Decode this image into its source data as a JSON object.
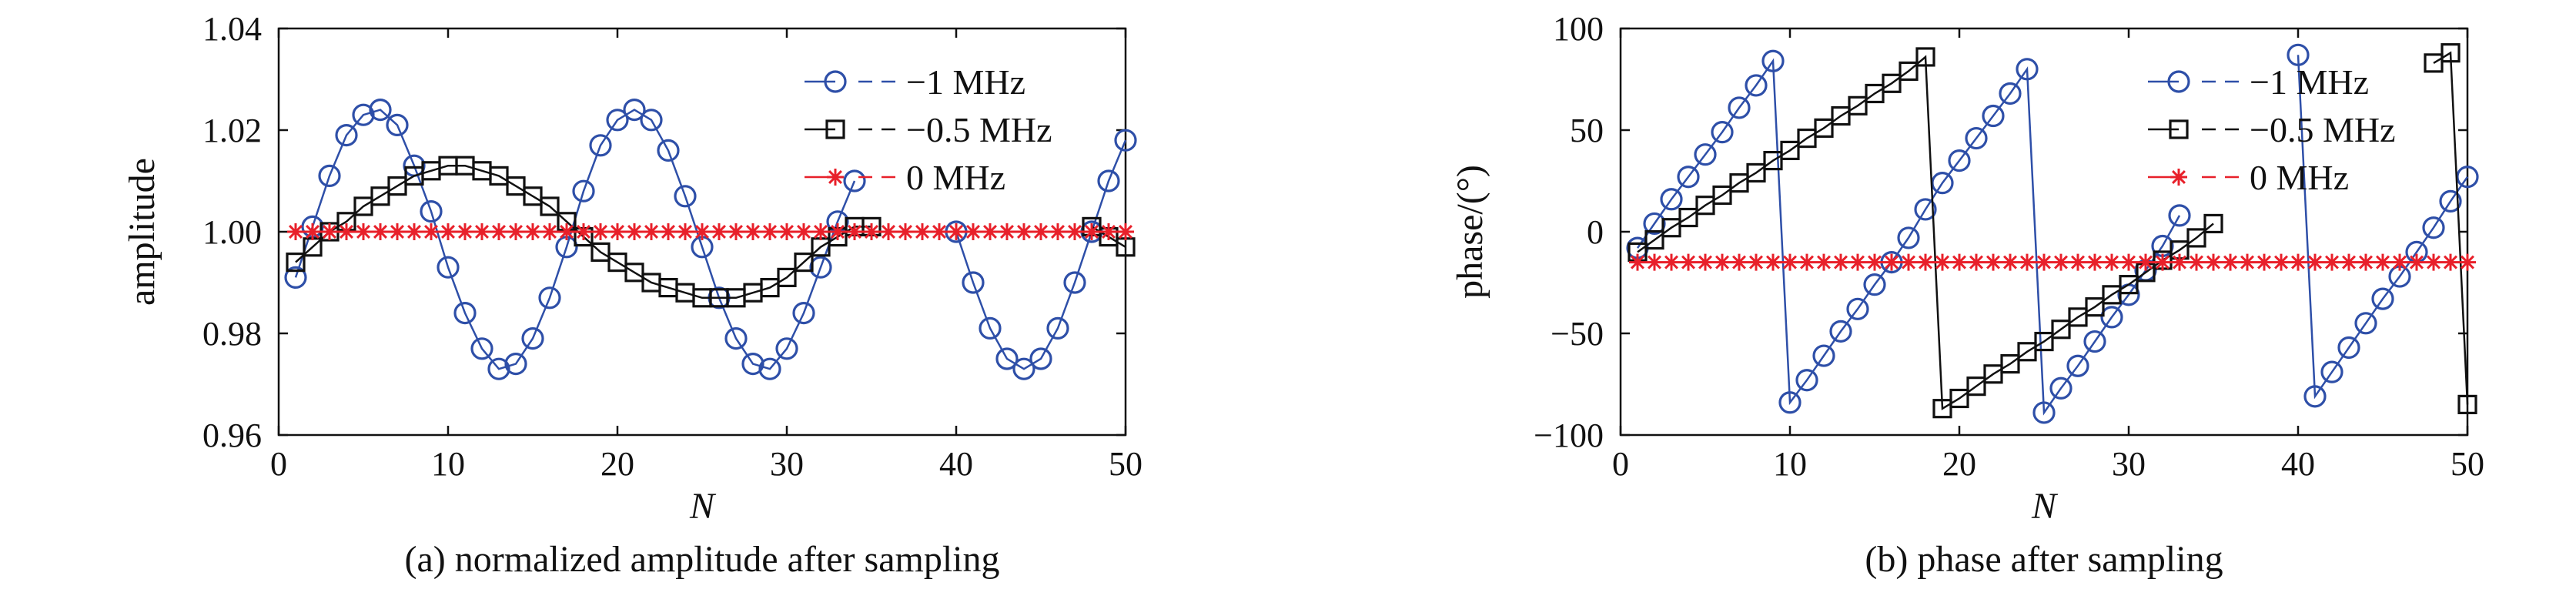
{
  "chart_data": [
    {
      "type": "line",
      "xlabel": "N",
      "ylabel": "amplitude",
      "caption": "(a) normalized amplitude after sampling",
      "xlim": [
        0,
        50
      ],
      "ylim": [
        0.96,
        1.04
      ],
      "xticks": [
        0,
        10,
        20,
        30,
        40,
        50
      ],
      "xtick_labels": [
        "0",
        "10",
        "20",
        "30",
        "40",
        "50"
      ],
      "yticks": [
        0.96,
        0.98,
        1.0,
        1.02,
        1.04
      ],
      "ytick_labels": [
        "0.96",
        "0.98",
        "1.00",
        "1.02",
        "1.04"
      ],
      "legend_position": "top-right",
      "series": [
        {
          "name": "−1 MHz",
          "color": "#2e4fa8",
          "marker": "circle",
          "x": [
            1,
            2,
            3,
            4,
            5,
            6,
            7,
            8,
            9,
            10,
            11,
            12,
            13,
            14,
            15,
            16,
            17,
            18,
            19,
            20,
            21,
            22,
            23,
            24,
            25,
            26,
            27,
            28,
            29,
            30,
            31,
            32,
            33,
            34,
            35,
            36,
            37,
            38,
            39,
            40,
            41,
            42,
            43,
            44,
            45,
            46,
            47,
            48,
            49,
            50
          ],
          "y": [
            0.991,
            1.001,
            1.011,
            1.019,
            1.023,
            1.024,
            1.021,
            1.013,
            1.004,
            0.993,
            0.984,
            0.977,
            0.973,
            0.974,
            0.979,
            0.987,
            0.997,
            1.008,
            1.017,
            1.022,
            1.024,
            1.022,
            1.016,
            1.007,
            0.997,
            0.987,
            0.979,
            0.974,
            0.973,
            0.977,
            0.984,
            0.993,
            1.002,
            1.01,
            null,
            null,
            null,
            null,
            null,
            1.0,
            0.99,
            0.981,
            0.975,
            0.973,
            0.975,
            0.981,
            0.99,
            1.0,
            1.01,
            1.018
          ]
        },
        {
          "name": "−0.5 MHz",
          "color": "#111111",
          "marker": "square",
          "x": [
            1,
            2,
            3,
            4,
            5,
            6,
            7,
            8,
            9,
            10,
            11,
            12,
            13,
            14,
            15,
            16,
            17,
            18,
            19,
            20,
            21,
            22,
            23,
            24,
            25,
            26,
            27,
            28,
            29,
            30,
            31,
            32,
            33,
            34,
            35,
            48,
            49,
            50
          ],
          "y": [
            0.994,
            0.997,
            1.0,
            1.002,
            1.005,
            1.007,
            1.009,
            1.011,
            1.012,
            1.013,
            1.013,
            1.012,
            1.011,
            1.009,
            1.007,
            1.005,
            1.002,
            0.999,
            0.996,
            0.994,
            0.992,
            0.99,
            0.989,
            0.988,
            0.987,
            0.987,
            0.987,
            0.988,
            0.989,
            0.991,
            0.994,
            0.997,
            0.999,
            1.001,
            1.001,
            1.001,
            0.999,
            0.997
          ]
        },
        {
          "name": "0 MHz",
          "color": "#e8202a",
          "marker": "asterisk",
          "x": [
            1,
            2,
            3,
            4,
            5,
            6,
            7,
            8,
            9,
            10,
            11,
            12,
            13,
            14,
            15,
            16,
            17,
            18,
            19,
            20,
            21,
            22,
            23,
            24,
            25,
            26,
            27,
            28,
            29,
            30,
            31,
            32,
            33,
            34,
            35,
            36,
            37,
            38,
            39,
            40,
            41,
            42,
            43,
            44,
            45,
            46,
            47,
            48,
            49,
            50
          ],
          "y": [
            1.0,
            1.0,
            1.0,
            1.0,
            1.0,
            1.0,
            1.0,
            1.0,
            1.0,
            1.0,
            1.0,
            1.0,
            1.0,
            1.0,
            1.0,
            1.0,
            1.0,
            1.0,
            1.0,
            1.0,
            1.0,
            1.0,
            1.0,
            1.0,
            1.0,
            1.0,
            1.0,
            1.0,
            1.0,
            1.0,
            1.0,
            1.0,
            1.0,
            1.0,
            1.0,
            1.0,
            1.0,
            1.0,
            1.0,
            1.0,
            1.0,
            1.0,
            1.0,
            1.0,
            1.0,
            1.0,
            1.0,
            1.0,
            1.0,
            1.0
          ]
        }
      ]
    },
    {
      "type": "line",
      "xlabel": "N",
      "ylabel": "phase/(°)",
      "caption": "(b) phase after sampling",
      "xlim": [
        0,
        50
      ],
      "ylim": [
        -100,
        100
      ],
      "xticks": [
        0,
        10,
        20,
        30,
        40,
        50
      ],
      "xtick_labels": [
        "0",
        "10",
        "20",
        "30",
        "40",
        "50"
      ],
      "yticks": [
        -100,
        -50,
        0,
        50,
        100
      ],
      "ytick_labels": [
        "−100",
        "−50",
        "0",
        "50",
        "100"
      ],
      "legend_position": "top-right",
      "series": [
        {
          "name": "−1 MHz",
          "color": "#2e4fa8",
          "marker": "circle",
          "x": [
            1,
            2,
            3,
            4,
            5,
            6,
            7,
            8,
            9,
            10,
            11,
            12,
            13,
            14,
            15,
            16,
            17,
            18,
            19,
            20,
            21,
            22,
            23,
            24,
            25,
            26,
            27,
            28,
            29,
            30,
            31,
            32,
            33,
            40,
            41,
            42,
            43,
            44,
            45,
            46,
            47,
            48,
            49,
            50
          ],
          "y": [
            -8,
            4,
            16,
            27,
            38,
            49,
            61,
            72,
            84,
            -84,
            -73,
            -61,
            -49,
            -38,
            -26,
            -15,
            -3,
            11,
            24,
            35,
            46,
            57,
            68,
            80,
            -89,
            -77,
            -66,
            -54,
            -42,
            -31,
            -19,
            -7,
            8,
            87,
            -81,
            -69,
            -57,
            -45,
            -33,
            -22,
            -10,
            2,
            15,
            27
          ]
        },
        {
          "name": "−0.5 MHz",
          "color": "#111111",
          "marker": "square",
          "x": [
            1,
            2,
            3,
            4,
            5,
            6,
            7,
            8,
            9,
            10,
            11,
            12,
            13,
            14,
            15,
            16,
            17,
            18,
            19,
            20,
            21,
            22,
            23,
            24,
            25,
            26,
            27,
            28,
            29,
            30,
            31,
            32,
            33,
            34,
            35,
            48,
            49,
            50
          ],
          "y": [
            -10,
            -4,
            2,
            7,
            13,
            18,
            24,
            29,
            35,
            40,
            46,
            51,
            57,
            62,
            68,
            73,
            79,
            86,
            -87,
            -82,
            -76,
            -70,
            -65,
            -59,
            -54,
            -48,
            -42,
            -37,
            -31,
            -26,
            -20,
            -14,
            -9,
            -3,
            4,
            83,
            88,
            -85
          ]
        },
        {
          "name": "0 MHz",
          "color": "#e8202a",
          "marker": "asterisk",
          "x": [
            1,
            2,
            3,
            4,
            5,
            6,
            7,
            8,
            9,
            10,
            11,
            12,
            13,
            14,
            15,
            16,
            17,
            18,
            19,
            20,
            21,
            22,
            23,
            24,
            25,
            26,
            27,
            28,
            29,
            30,
            31,
            32,
            33,
            34,
            35,
            36,
            37,
            38,
            39,
            40,
            41,
            42,
            43,
            44,
            45,
            46,
            47,
            48,
            49,
            50
          ],
          "y": [
            -15,
            -15,
            -15,
            -15,
            -15,
            -15,
            -15,
            -15,
            -15,
            -15,
            -15,
            -15,
            -15,
            -15,
            -15,
            -15,
            -15,
            -15,
            -15,
            -15,
            -15,
            -15,
            -15,
            -15,
            -15,
            -15,
            -15,
            -15,
            -15,
            -15,
            -15,
            -15,
            -15,
            -15,
            -15,
            -15,
            -15,
            -15,
            -15,
            -15,
            -15,
            -15,
            -15,
            -15,
            -15,
            -15,
            -15,
            -15,
            -15,
            -15
          ]
        }
      ]
    }
  ]
}
